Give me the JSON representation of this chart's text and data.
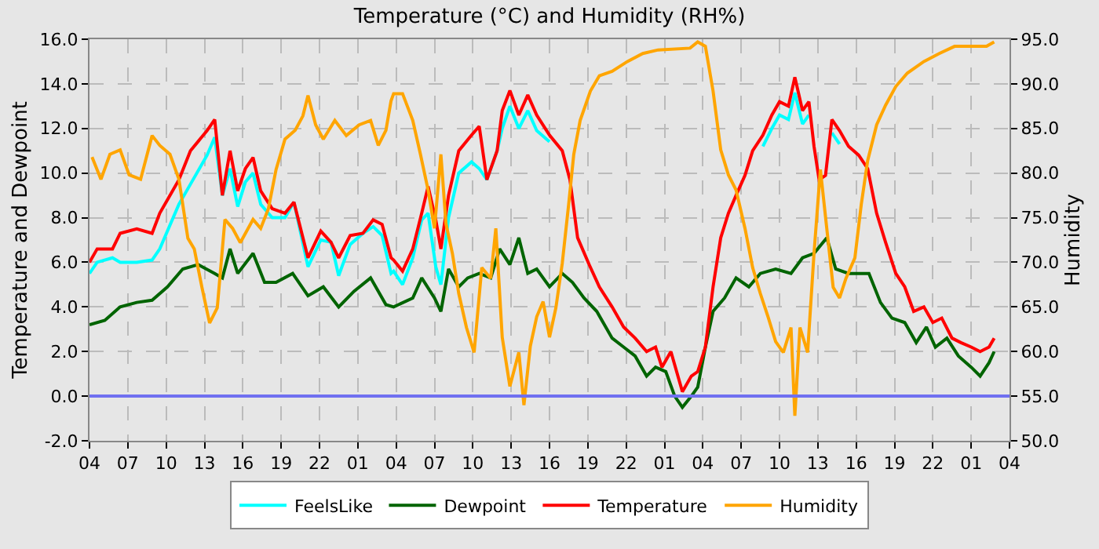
{
  "chart_data": {
    "type": "line",
    "title": "Temperature (°C) and Humidity (RH%)",
    "ylabel": "Temperature and Dewpoint",
    "y2label": "Humidity",
    "xlim": [
      "--01-01T04:00",
      "--01-04T04:00"
    ],
    "xticks": [
      {
        "value": "--01-01T04:00",
        "label": "04"
      },
      {
        "value": "--01-01T07:00",
        "label": "07"
      },
      {
        "value": "--01-01T10:00",
        "label": "10"
      },
      {
        "value": "--01-01T13:00",
        "label": "13"
      },
      {
        "value": "--01-01T16:00",
        "label": "16"
      },
      {
        "value": "--01-01T19:00",
        "label": "19"
      },
      {
        "value": "--01-01T22:00",
        "label": "22"
      },
      {
        "value": "--01-02T01:00",
        "label": "01"
      },
      {
        "value": "--01-02T04:00",
        "label": "04"
      },
      {
        "value": "--01-02T07:00",
        "label": "07"
      },
      {
        "value": "--01-02T10:00",
        "label": "10"
      },
      {
        "value": "--01-02T13:00",
        "label": "13"
      },
      {
        "value": "--01-02T16:00",
        "label": "16"
      },
      {
        "value": "--01-02T19:00",
        "label": "19"
      },
      {
        "value": "--01-02T22:00",
        "label": "22"
      },
      {
        "value": "--01-03T01:00",
        "label": "01"
      },
      {
        "value": "--01-03T04:00",
        "label": "04"
      },
      {
        "value": "--01-03T07:00",
        "label": "07"
      },
      {
        "value": "--01-03T10:00",
        "label": "10"
      },
      {
        "value": "--01-03T13:00",
        "label": "13"
      },
      {
        "value": "--01-03T16:00",
        "label": "16"
      },
      {
        "value": "--01-03T19:00",
        "label": "19"
      },
      {
        "value": "--01-03T22:00",
        "label": "22"
      },
      {
        "value": "--01-04T01:00",
        "label": "01"
      },
      {
        "value": "--01-04T04:00",
        "label": "04"
      }
    ],
    "ylim": [
      -2,
      16
    ],
    "yticks": [
      {
        "value": -2,
        "label": "-2.0"
      },
      {
        "value": 0,
        "label": "0.0"
      },
      {
        "value": 2,
        "label": "2.0"
      },
      {
        "value": 4,
        "label": "4.0"
      },
      {
        "value": 6,
        "label": "6.0"
      },
      {
        "value": 8,
        "label": "8.0"
      },
      {
        "value": 10,
        "label": "10.0"
      },
      {
        "value": 12,
        "label": "12.0"
      },
      {
        "value": 14,
        "label": "14.0"
      },
      {
        "value": 16,
        "label": "16.0"
      }
    ],
    "y2lim": [
      50,
      95
    ],
    "y2ticks": [
      {
        "value": 50,
        "label": "50.0"
      },
      {
        "value": 55,
        "label": "55.0"
      },
      {
        "value": 60,
        "label": "60.0"
      },
      {
        "value": 65,
        "label": "65.0"
      },
      {
        "value": 70,
        "label": "70.0"
      },
      {
        "value": 75,
        "label": "75.0"
      },
      {
        "value": 80,
        "label": "80.0"
      },
      {
        "value": 85,
        "label": "85.0"
      },
      {
        "value": 90,
        "label": "90.0"
      },
      {
        "value": 95,
        "label": "95.0"
      }
    ],
    "grid": true,
    "legend": "bottom",
    "marker": "none",
    "line_style": "solid",
    "ref_lines": [
      {
        "axis": "y",
        "value": 0,
        "color": "#7070f0"
      }
    ],
    "x": [
      "--01-01T04:00",
      "--01-01T04:36",
      "--01-01T05:48",
      "--01-01T06:24",
      "--01-01T07:42",
      "--01-01T08:54",
      "--01-01T09:30",
      "--01-01T11:00",
      "--01-01T11:54",
      "--01-01T13:12",
      "--01-01T13:48",
      "--01-01T14:24",
      "--01-01T15:00",
      "--01-01T15:36",
      "--01-01T16:12",
      "--01-01T16:48",
      "--01-01T17:24",
      "--01-01T18:18",
      "--01-01T19:18",
      "--01-01T20:00",
      "--01-01T21:06",
      "--01-01T22:06",
      "--01-01T22:54",
      "--01-01T23:30",
      "--01-02T00:24",
      "--01-02T01:24",
      "--01-02T02:12",
      "--01-02T02:54",
      "--01-02T03:36",
      "--01-02T03:48",
      "--01-02T04:30",
      "--01-02T05:18",
      "--01-02T06:00",
      "--01-02T06:30",
      "--01-02T07:06",
      "--01-02T07:30",
      "--01-02T08:06",
      "--01-02T08:54",
      "--01-02T09:54",
      "--01-02T10:30",
      "--01-02T11:06",
      "--01-02T11:54",
      "--01-02T12:18",
      "--01-02T12:54",
      "--01-02T13:36",
      "--01-02T14:18",
      "--01-02T15:00",
      "--01-02T16:00",
      "--01-02T17:00",
      "--01-02T17:36",
      "--01-02T18:12",
      "--01-02T19:06",
      "--01-02T19:54",
      "--01-02T20:54",
      "--01-02T21:48",
      "--01-02T22:42",
      "--01-02T23:36",
      "--01-03T00:18",
      "--01-03T00:48",
      "--01-03T01:30",
      "--01-03T02:24",
      "--01-03T03:06",
      "--01-03T03:36",
      "--01-03T04:12",
      "--01-03T04:48",
      "--01-03T05:24",
      "--01-03T06:00",
      "--01-03T06:36",
      "--01-03T07:18",
      "--01-03T07:54",
      "--01-03T08:42",
      "--01-03T09:24",
      "--01-03T10:00",
      "--01-03T10:42",
      "--01-03T11:12",
      "--01-03T11:48",
      "--01-03T12:18",
      "--01-03T12:42",
      "--01-03T13:06",
      "--01-03T13:36",
      "--01-03T14:06",
      "--01-03T14:42",
      "--01-03T15:24",
      "--01-03T16:12",
      "--01-03T16:54",
      "--01-03T17:36",
      "--01-03T18:18",
      "--01-03T19:06",
      "--01-03T19:48",
      "--01-03T20:30",
      "--01-03T21:18",
      "--01-03T22:00",
      "--01-03T22:42",
      "--01-03T23:30",
      "--01-04T00:12",
      "--01-04T01:00",
      "--01-04T01:42",
      "--01-04T02:24",
      "--01-04T02:48"
    ],
    "series": [
      {
        "name": "FeelsLike",
        "color": "#00ffff",
        "values": [
          5.5,
          6.0,
          6.2,
          6.0,
          6.0,
          6.1,
          6.6,
          8.6,
          9.5,
          10.8,
          11.6,
          9.0,
          10.2,
          8.5,
          9.6,
          10.0,
          8.6,
          8.0,
          8.0,
          8.7,
          5.8,
          7.0,
          6.9,
          5.4,
          6.8,
          7.3,
          7.6,
          7.2,
          5.5,
          5.6,
          5.0,
          6.2,
          7.9,
          8.2,
          5.8,
          5.0,
          8.0,
          10.0,
          10.5,
          10.2,
          9.7,
          11.0,
          12.0,
          13.0,
          12.0,
          12.8,
          11.9,
          11.4,
          null,
          null,
          null,
          null,
          null,
          null,
          null,
          null,
          null,
          null,
          null,
          null,
          null,
          null,
          null,
          null,
          null,
          null,
          null,
          null,
          null,
          null,
          11.2,
          12.0,
          12.6,
          12.4,
          13.6,
          12.2,
          12.6,
          null,
          null,
          null,
          11.8,
          11.3,
          null,
          null,
          null,
          null,
          null,
          null,
          null,
          null,
          null,
          null,
          null,
          null,
          null,
          null,
          null,
          null,
          null
        ]
      },
      {
        "name": "Dewpoint",
        "color": "#006400",
        "x": [
          "--01-01T04:00",
          "--01-01T05:12",
          "--01-01T06:24",
          "--01-01T07:42",
          "--01-01T08:54",
          "--01-01T10:06",
          "--01-01T11:18",
          "--01-01T12:30",
          "--01-01T13:48",
          "--01-01T14:24",
          "--01-01T15:00",
          "--01-01T15:36",
          "--01-01T16:48",
          "--01-01T17:42",
          "--01-01T18:36",
          "--01-01T19:54",
          "--01-01T21:06",
          "--01-01T22:18",
          "--01-01T23:30",
          "--01-02T00:42",
          "--01-02T02:00",
          "--01-02T03:12",
          "--01-02T03:48",
          "--01-02T05:18",
          "--01-02T06:00",
          "--01-02T07:00",
          "--01-02T07:30",
          "--01-02T08:06",
          "--01-02T08:54",
          "--01-02T09:36",
          "--01-02T10:30",
          "--01-02T11:24",
          "--01-02T12:06",
          "--01-02T12:54",
          "--01-02T13:36",
          "--01-02T14:18",
          "--01-02T15:00",
          "--01-02T16:00",
          "--01-02T17:00",
          "--01-02T17:48",
          "--01-02T18:42",
          "--01-02T19:42",
          "--01-02T20:54",
          "--01-02T21:48",
          "--01-02T22:42",
          "--01-02T23:36",
          "--01-03T00:18",
          "--01-03T01:06",
          "--01-03T01:48",
          "--01-03T02:24",
          "--01-03T03:06",
          "--01-03T03:36",
          "--01-03T04:12",
          "--01-03T04:48",
          "--01-03T05:42",
          "--01-03T06:36",
          "--01-03T07:36",
          "--01-03T08:30",
          "--01-03T09:42",
          "--01-03T10:54",
          "--01-03T11:48",
          "--01-03T12:42",
          "--01-03T13:42",
          "--01-03T14:24",
          "--01-03T15:24",
          "--01-03T16:12",
          "--01-03T17:00",
          "--01-03T17:54",
          "--01-03T18:48",
          "--01-03T19:48",
          "--01-03T20:42",
          "--01-03T21:30",
          "--01-03T22:12",
          "--01-03T23:06",
          "--01-04T00:00",
          "--01-04T01:00",
          "--01-04T01:42",
          "--01-04T02:24",
          "--01-04T02:48"
        ],
        "values": [
          3.2,
          3.4,
          4.0,
          4.2,
          4.3,
          4.9,
          5.7,
          5.9,
          5.5,
          5.3,
          6.6,
          5.5,
          6.4,
          5.1,
          5.1,
          5.5,
          4.5,
          4.9,
          4.0,
          4.7,
          5.3,
          4.1,
          4.0,
          4.4,
          5.3,
          4.4,
          3.8,
          5.7,
          4.9,
          5.3,
          5.5,
          5.3,
          6.6,
          5.9,
          7.1,
          5.5,
          5.7,
          4.9,
          5.5,
          5.1,
          4.4,
          3.8,
          2.6,
          2.2,
          1.8,
          0.9,
          1.3,
          1.1,
          0.0,
          -0.5,
          0.0,
          0.4,
          2.2,
          3.8,
          4.4,
          5.3,
          4.9,
          5.5,
          5.7,
          5.5,
          6.2,
          6.4,
          7.1,
          5.7,
          5.5,
          5.5,
          5.5,
          4.2,
          3.5,
          3.3,
          2.4,
          3.1,
          2.2,
          2.6,
          1.8,
          1.3,
          0.9,
          1.5,
          2.0
        ]
      },
      {
        "name": "Temperature",
        "color": "#ff0000",
        "values": [
          6.0,
          6.6,
          6.6,
          7.3,
          7.5,
          7.3,
          8.2,
          9.7,
          11.0,
          11.9,
          12.4,
          9.0,
          11.0,
          9.2,
          10.2,
          10.7,
          9.2,
          8.4,
          8.2,
          8.7,
          6.2,
          7.4,
          6.9,
          6.2,
          7.2,
          7.3,
          7.9,
          7.7,
          6.2,
          6.1,
          5.6,
          6.6,
          8.2,
          9.4,
          7.9,
          6.6,
          9.0,
          11.0,
          11.7,
          12.1,
          9.7,
          11.0,
          12.8,
          13.7,
          12.6,
          13.5,
          12.6,
          11.7,
          11.0,
          9.7,
          7.1,
          5.9,
          4.9,
          4.0,
          3.1,
          2.6,
          2.0,
          2.2,
          1.3,
          2.0,
          0.2,
          0.9,
          1.1,
          2.2,
          4.9,
          7.1,
          8.2,
          9.0,
          9.9,
          11.0,
          11.7,
          12.6,
          13.2,
          13.0,
          14.3,
          12.8,
          13.2,
          11.2,
          9.7,
          9.9,
          12.4,
          11.9,
          11.2,
          10.8,
          10.2,
          8.2,
          6.9,
          5.5,
          4.9,
          3.8,
          4.0,
          3.3,
          3.5,
          2.6,
          2.4,
          2.2,
          2.0,
          2.2,
          2.6
        ]
      },
      {
        "name": "Humidity",
        "color": "#ffa500",
        "axis": "y2",
        "x": [
          "--01-01T04:12",
          "--01-01T04:54",
          "--01-01T05:36",
          "--01-01T06:24",
          "--01-01T07:06",
          "--01-01T08:00",
          "--01-01T08:54",
          "--01-01T09:30",
          "--01-01T10:18",
          "--01-01T11:00",
          "--01-01T11:42",
          "--01-01T12:12",
          "--01-01T12:48",
          "--01-01T13:24",
          "--01-01T14:00",
          "--01-01T14:36",
          "--01-01T15:12",
          "--01-01T15:48",
          "--01-01T16:48",
          "--01-01T17:24",
          "--01-01T18:00",
          "--01-01T18:36",
          "--01-01T19:18",
          "--01-01T20:06",
          "--01-01T20:42",
          "--01-01T21:06",
          "--01-01T21:42",
          "--01-01T22:18",
          "--01-01T23:12",
          "--01-02T00:06",
          "--01-02T01:06",
          "--01-02T02:00",
          "--01-02T02:36",
          "--01-02T03:12",
          "--01-02T03:36",
          "--01-02T03:48",
          "--01-02T04:30",
          "--01-02T05:18",
          "--01-02T05:54",
          "--01-02T06:30",
          "--01-02T07:00",
          "--01-02T07:30",
          "--01-02T07:54",
          "--01-02T08:24",
          "--01-02T08:54",
          "--01-02T09:30",
          "--01-02T10:06",
          "--01-02T10:42",
          "--01-02T11:24",
          "--01-02T11:48",
          "--01-02T12:18",
          "--01-02T12:54",
          "--01-02T13:36",
          "--01-02T14:00",
          "--01-02T14:30",
          "--01-02T15:00",
          "--01-02T15:30",
          "--01-02T16:00",
          "--01-02T16:30",
          "--01-02T17:00",
          "--01-02T17:30",
          "--01-02T17:54",
          "--01-02T18:24",
          "--01-02T19:12",
          "--01-02T19:54",
          "--01-02T20:54",
          "--01-02T22:06",
          "--01-02T23:18",
          "--01-03T00:30",
          "--01-03T03:00",
          "--01-03T03:36",
          "--01-03T04:12",
          "--01-03T04:48",
          "--01-03T05:24",
          "--01-03T06:00",
          "--01-03T06:36",
          "--01-03T07:18",
          "--01-03T07:54",
          "--01-03T08:30",
          "--01-03T09:06",
          "--01-03T09:42",
          "--01-03T10:18",
          "--01-03T10:54",
          "--01-03T11:12",
          "--01-03T11:36",
          "--01-03T12:12",
          "--01-03T12:42",
          "--01-03T13:12",
          "--01-03T13:42",
          "--01-03T14:12",
          "--01-03T14:42",
          "--01-03T15:12",
          "--01-03T15:54",
          "--01-03T16:24",
          "--01-03T16:54",
          "--01-03T17:36",
          "--01-03T18:18",
          "--01-03T19:06",
          "--01-03T20:00",
          "--01-03T21:18",
          "--01-03T22:30",
          "--01-03T23:42",
          "--01-04T02:12",
          "--01-04T02:48"
        ],
        "values": [
          81.8,
          79.3,
          82.1,
          82.6,
          79.8,
          79.3,
          84.2,
          83.1,
          82.1,
          79.3,
          72.7,
          71.5,
          67.2,
          63.2,
          64.9,
          74.8,
          73.8,
          72.2,
          74.8,
          73.8,
          76.0,
          80.4,
          83.8,
          84.8,
          86.4,
          88.7,
          85.4,
          83.8,
          85.9,
          84.2,
          85.4,
          85.9,
          83.1,
          84.8,
          88.1,
          88.9,
          88.9,
          85.9,
          82.1,
          78.1,
          73.8,
          82.1,
          74.3,
          71.0,
          66.5,
          62.7,
          59.9,
          69.4,
          68.2,
          73.8,
          61.6,
          56.1,
          59.9,
          54.0,
          60.6,
          63.9,
          65.6,
          61.6,
          64.9,
          69.9,
          76.5,
          82.1,
          85.9,
          89.2,
          90.9,
          91.4,
          92.5,
          93.4,
          93.8,
          94.0,
          94.7,
          94.2,
          89.2,
          82.6,
          79.8,
          78.1,
          73.8,
          69.4,
          66.5,
          63.9,
          61.1,
          59.9,
          62.7,
          52.8,
          62.7,
          59.9,
          71.0,
          80.4,
          73.8,
          67.2,
          66.0,
          68.2,
          70.5,
          76.5,
          81.4,
          85.4,
          87.6,
          89.7,
          91.2,
          92.5,
          93.4,
          94.2,
          94.2,
          94.7
        ]
      }
    ]
  }
}
